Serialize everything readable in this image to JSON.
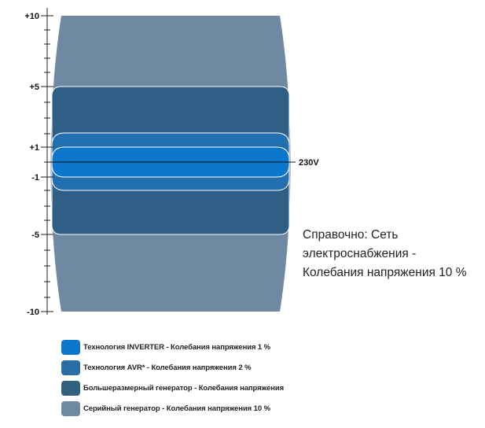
{
  "axis": {
    "ticks": [
      {
        "label": "+10",
        "value": 10
      },
      {
        "label": "+5",
        "value": 5
      },
      {
        "label": "+1",
        "value": 1
      },
      {
        "label": "-1",
        "value": -1
      },
      {
        "label": "-5",
        "value": -5
      },
      {
        "label": "-10",
        "value": -10
      }
    ],
    "range": [
      -10,
      10
    ]
  },
  "reference": {
    "label": "230V",
    "value": 0
  },
  "bands": [
    {
      "id": "serial",
      "half_width_percent": 10,
      "color": "#6f89a2"
    },
    {
      "id": "large",
      "half_width_percent": 5,
      "color": "#2f5f86"
    },
    {
      "id": "avr",
      "half_width_percent": 1.5,
      "color": "#226fb0"
    },
    {
      "id": "inverter",
      "half_width_percent": 1,
      "color": "#0a77cc"
    }
  ],
  "note": {
    "line1": "Справочно: Сеть",
    "line2": "электроснабжения -",
    "line3": "Колебания напряжения 10 %"
  },
  "legend": [
    {
      "label": "Технология INVERTER - Колебания напряжения 1 %",
      "color": "#0a77cc"
    },
    {
      "label": "Технология AVR* - Колебания напряжения 2 %",
      "color": "#2a6ea6"
    },
    {
      "label": "Большеразмерный генератор  - Колебания напряжения",
      "color": "#33607f"
    },
    {
      "label": "Серийный генератор - Колебания напряжения 10 %",
      "color": "#6f89a2"
    }
  ]
}
